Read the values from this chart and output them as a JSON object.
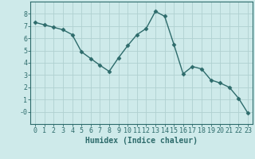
{
  "x": [
    0,
    1,
    2,
    3,
    4,
    5,
    6,
    7,
    8,
    9,
    10,
    11,
    12,
    13,
    14,
    15,
    16,
    17,
    18,
    19,
    20,
    21,
    22,
    23
  ],
  "y": [
    7.3,
    7.1,
    6.9,
    6.7,
    6.3,
    4.9,
    4.35,
    3.8,
    3.3,
    4.4,
    5.4,
    6.3,
    6.8,
    8.2,
    7.8,
    5.5,
    3.1,
    3.7,
    3.5,
    2.6,
    2.35,
    2.0,
    1.1,
    -0.1
  ],
  "xlabel": "Humidex (Indice chaleur)",
  "line_color": "#2d6b6b",
  "marker_color": "#2d6b6b",
  "bg_color": "#ceeaea",
  "grid_color": "#b0d0d0",
  "xlim": [
    -0.5,
    23.5
  ],
  "ylim": [
    -1.0,
    9.0
  ],
  "ytick_vals": [
    0,
    1,
    2,
    3,
    4,
    5,
    6,
    7,
    8
  ],
  "ytick_labels": [
    "-0",
    "1",
    "2",
    "3",
    "4",
    "5",
    "6",
    "7",
    "8"
  ],
  "xtick_vals": [
    0,
    1,
    2,
    3,
    4,
    5,
    6,
    7,
    8,
    9,
    10,
    11,
    12,
    13,
    14,
    15,
    16,
    17,
    18,
    19,
    20,
    21,
    22,
    23
  ],
  "axis_color": "#2d6b6b",
  "font_color": "#2d6b6b",
  "fontsize_tick": 6,
  "fontsize_xlabel": 7,
  "linewidth": 1.0,
  "markersize": 2.5
}
